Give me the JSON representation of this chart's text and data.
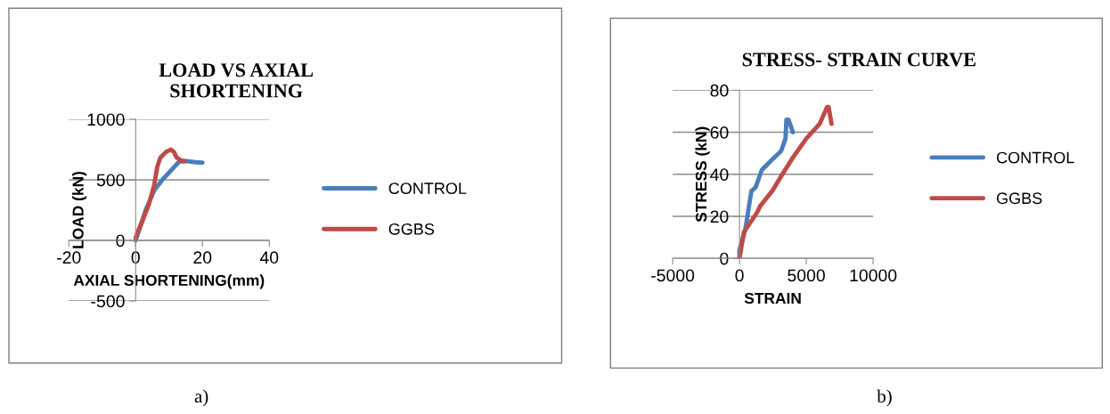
{
  "chart_data": [
    {
      "type": "line",
      "title": "LOAD VS AXIAL\nSHORTENING",
      "xlabel": "AXIAL SHORTENING(mm)",
      "ylabel": "LOAD (kN)",
      "xlim": [
        -20,
        40
      ],
      "xticks": [
        -20,
        0,
        20,
        40
      ],
      "ylim": [
        -500,
        1000
      ],
      "yticks": [
        -500,
        0,
        500,
        1000
      ],
      "grid": "y",
      "legend": "right",
      "marker": "none",
      "line_style": "solid",
      "annotations": [
        "a)"
      ],
      "series": [
        {
          "name": "CONTROL",
          "color": "#4a7ebb",
          "x": [
            0,
            1,
            3,
            5.6,
            8,
            10,
            12,
            13,
            15,
            18,
            20
          ],
          "values": [
            0,
            80,
            250,
            415,
            500,
            560,
            620,
            650,
            655,
            645,
            642
          ]
        },
        {
          "name": "GGBS",
          "color": "#be4b48",
          "x": [
            0,
            0.5,
            2,
            4,
            5.5,
            6.5,
            7.4,
            9.2,
            10.5,
            11.4,
            12.3,
            13.7,
            14.6
          ],
          "values": [
            20,
            60,
            160,
            300,
            450,
            610,
            683,
            732,
            749,
            732,
            683,
            659,
            654
          ]
        }
      ]
    },
    {
      "type": "line",
      "title": "STRESS- STRAIN CURVE",
      "xlabel": "STRAIN",
      "ylabel": "STRESS (kN)",
      "xlim": [
        -5000,
        10000
      ],
      "xticks": [
        -5000,
        0,
        5000,
        10000
      ],
      "ylim": [
        0,
        80
      ],
      "yticks": [
        0,
        20,
        40,
        60,
        80
      ],
      "grid": "y",
      "legend": "right",
      "marker": "none",
      "line_style": "solid",
      "annotations": [
        "b)"
      ],
      "series": [
        {
          "name": "CONTROL",
          "color": "#4a7ebb",
          "x": [
            0,
            0,
            444,
            889,
            1222,
            1667,
            2444,
            3111,
            3444,
            3511,
            3667,
            4000
          ],
          "values": [
            0,
            4,
            14,
            32,
            34,
            42,
            47,
            51,
            57,
            66,
            66,
            60
          ]
        },
        {
          "name": "GGBS",
          "color": "#be4b48",
          "x": [
            0,
            333,
            1333,
            1556,
            2444,
            3111,
            4000,
            5000,
            6000,
            6556,
            6667,
            6889
          ],
          "values": [
            0,
            12.5,
            22,
            25,
            32,
            39,
            48,
            57,
            64,
            72,
            72,
            64
          ]
        }
      ]
    }
  ]
}
